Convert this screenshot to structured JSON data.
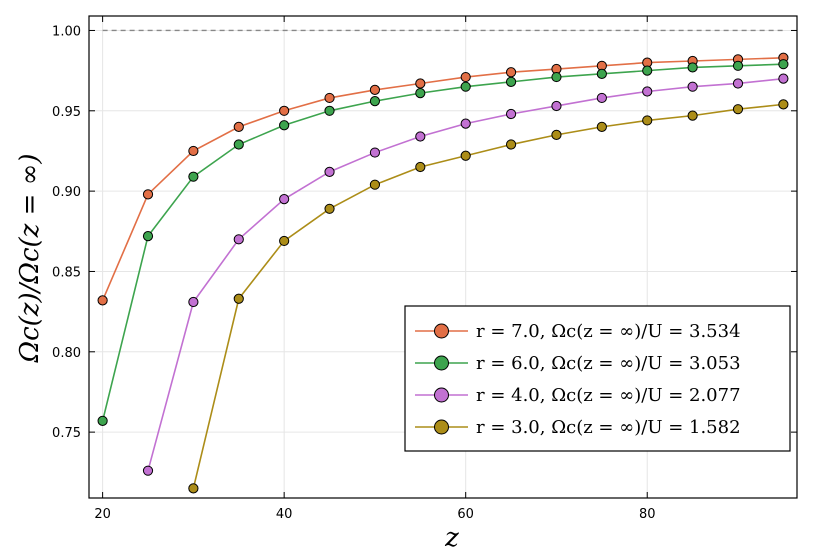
{
  "chart_data": {
    "type": "line",
    "title": "",
    "xlabel": "z",
    "ylabel": "Ωc(z)/Ωc(z = ∞)",
    "xlim": [
      18.5,
      96.5
    ],
    "ylim": [
      0.709,
      1.009
    ],
    "xticks": [
      "20",
      "40",
      "60",
      "80"
    ],
    "xtick_values": [
      20,
      40,
      60,
      80
    ],
    "yticks": [
      "0.75",
      "0.80",
      "0.85",
      "0.90",
      "0.95",
      "1.00"
    ],
    "ytick_values": [
      0.75,
      0.8,
      0.85,
      0.9,
      0.95,
      1.0
    ],
    "grid": true,
    "legend_position": "bottom-right",
    "reference_line": {
      "y": 1.0,
      "style": "dashed",
      "color": "#888888"
    },
    "series": [
      {
        "name": "r = 7.0, Ωc(z = ∞)/U = 3.534",
        "color": "#E26F46",
        "x": [
          20,
          25,
          30,
          35,
          40,
          45,
          50,
          55,
          60,
          65,
          70,
          75,
          80,
          85,
          90,
          95
        ],
        "y": [
          0.832,
          0.898,
          0.925,
          0.94,
          0.95,
          0.958,
          0.963,
          0.967,
          0.971,
          0.974,
          0.976,
          0.978,
          0.98,
          0.981,
          0.982,
          0.983
        ]
      },
      {
        "name": "r = 6.0, Ωc(z = ∞)/U = 3.053",
        "color": "#3DA44E",
        "x": [
          20,
          25,
          30,
          35,
          40,
          45,
          50,
          55,
          60,
          65,
          70,
          75,
          80,
          85,
          90,
          95
        ],
        "y": [
          0.757,
          0.872,
          0.909,
          0.929,
          0.941,
          0.95,
          0.956,
          0.961,
          0.965,
          0.968,
          0.971,
          0.973,
          0.975,
          0.977,
          0.978,
          0.979
        ]
      },
      {
        "name": "r = 4.0, Ωc(z = ∞)/U = 2.077",
        "color": "#C271D2",
        "x": [
          25,
          30,
          35,
          40,
          45,
          50,
          55,
          60,
          65,
          70,
          75,
          80,
          85,
          90,
          95
        ],
        "y": [
          0.726,
          0.831,
          0.87,
          0.895,
          0.912,
          0.924,
          0.934,
          0.942,
          0.948,
          0.953,
          0.958,
          0.962,
          0.965,
          0.967,
          0.97
        ]
      },
      {
        "name": "r = 3.0, Ωc(z = ∞)/U = 1.582",
        "color": "#AC8D18",
        "x": [
          30,
          35,
          40,
          45,
          50,
          55,
          60,
          65,
          70,
          75,
          80,
          85,
          90,
          95
        ],
        "y": [
          0.715,
          0.833,
          0.869,
          0.889,
          0.904,
          0.915,
          0.922,
          0.929,
          0.935,
          0.94,
          0.944,
          0.947,
          0.951,
          0.954
        ]
      }
    ]
  }
}
